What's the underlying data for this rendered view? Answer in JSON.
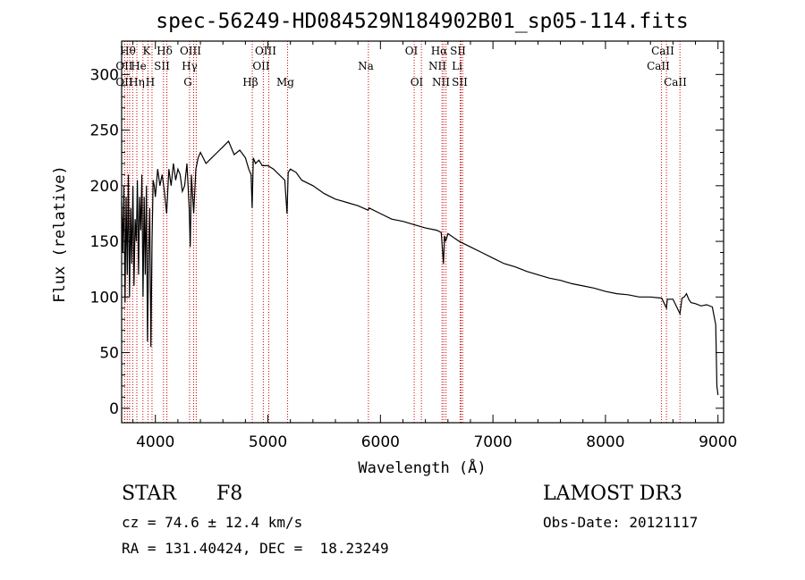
{
  "chart_data": {
    "type": "line",
    "title": "spec-56249-HD084529N184902B01_sp05-114.fits",
    "xlabel": "Wavelength (Å)",
    "ylabel": "Flux (relative)",
    "xlim": [
      3700,
      9050
    ],
    "ylim": [
      -13,
      330
    ],
    "xticks": [
      4000,
      5000,
      6000,
      7000,
      8000,
      9000
    ],
    "yticks": [
      0,
      50,
      100,
      150,
      200,
      250,
      300
    ],
    "series": [
      {
        "name": "flux",
        "x": [
          3700,
          3710,
          3720,
          3730,
          3740,
          3750,
          3760,
          3770,
          3780,
          3790,
          3800,
          3810,
          3820,
          3830,
          3840,
          3850,
          3860,
          3870,
          3880,
          3890,
          3900,
          3910,
          3920,
          3930,
          3940,
          3950,
          3960,
          3970,
          3980,
          3990,
          4000,
          4020,
          4040,
          4060,
          4080,
          4100,
          4120,
          4140,
          4160,
          4180,
          4200,
          4220,
          4240,
          4260,
          4280,
          4300,
          4310,
          4320,
          4340,
          4360,
          4380,
          4400,
          4450,
          4500,
          4550,
          4600,
          4650,
          4700,
          4750,
          4800,
          4830,
          4850,
          4860,
          4870,
          4890,
          4920,
          4950,
          5000,
          5050,
          5100,
          5150,
          5170,
          5180,
          5200,
          5250,
          5300,
          5400,
          5500,
          5600,
          5700,
          5800,
          5890,
          5900,
          6000,
          6100,
          6200,
          6300,
          6400,
          6500,
          6540,
          6560,
          6570,
          6580,
          6600,
          6700,
          6800,
          6900,
          7000,
          7100,
          7200,
          7300,
          7400,
          7500,
          7600,
          7700,
          7800,
          7900,
          8000,
          8100,
          8200,
          8300,
          8400,
          8500,
          8542,
          8550,
          8600,
          8662,
          8680,
          8700,
          8720,
          8740,
          8760,
          8800,
          8850,
          8900,
          8950,
          8980,
          8990,
          9000
        ],
        "values": [
          185,
          140,
          200,
          95,
          190,
          120,
          210,
          100,
          180,
          130,
          200,
          110,
          170,
          150,
          205,
          120,
          190,
          160,
          210,
          100,
          190,
          120,
          200,
          60,
          140,
          180,
          55,
          150,
          205,
          200,
          190,
          215,
          200,
          210,
          195,
          175,
          215,
          200,
          220,
          205,
          215,
          210,
          195,
          200,
          220,
          180,
          145,
          210,
          175,
          215,
          225,
          230,
          220,
          225,
          230,
          235,
          240,
          228,
          232,
          225,
          215,
          210,
          180,
          225,
          220,
          223,
          218,
          218,
          215,
          210,
          205,
          175,
          212,
          215,
          212,
          205,
          200,
          193,
          188,
          185,
          182,
          178,
          180,
          175,
          170,
          168,
          165,
          162,
          160,
          158,
          130,
          155,
          150,
          157,
          150,
          145,
          140,
          135,
          130,
          127,
          123,
          120,
          117,
          115,
          112,
          110,
          108,
          105,
          103,
          102,
          100,
          100,
          99,
          90,
          98,
          98,
          85,
          99,
          100,
          103,
          98,
          95,
          94,
          92,
          93,
          91,
          75,
          20,
          12
        ]
      }
    ],
    "lines_top": [
      "Hθ",
      "K",
      "Hδ",
      "OIII",
      "OIII",
      "OI",
      "Hα",
      "SII",
      "CaII"
    ],
    "lines_mid": [
      "OII",
      "He",
      "SII",
      "Hγ",
      "OII",
      "Na",
      "NII",
      "Li",
      "CaII"
    ],
    "lines_low": [
      "OII",
      "Hη",
      "H",
      "G",
      "Hβ",
      "Mg",
      "OI",
      "NII",
      "SII",
      "CaII"
    ],
    "line_wavelengths": [
      3727,
      3750,
      3771,
      3798,
      3835,
      3889,
      3934,
      3970,
      4072,
      4102,
      4304,
      4340,
      4363,
      4861,
      4959,
      5007,
      5175,
      5893,
      6300,
      6364,
      6548,
      6563,
      6583,
      6708,
      6717,
      6731,
      8498,
      8542,
      8662
    ],
    "line_color": "#cc0000"
  },
  "info": {
    "class": "STAR",
    "subclass": "F8",
    "survey": "LAMOST DR3",
    "cz": "cz = 74.6 ± 12.4 km/s",
    "obs_date": "Obs-Date: 20121117",
    "radec": "RA = 131.40424, DEC =  18.23249"
  }
}
